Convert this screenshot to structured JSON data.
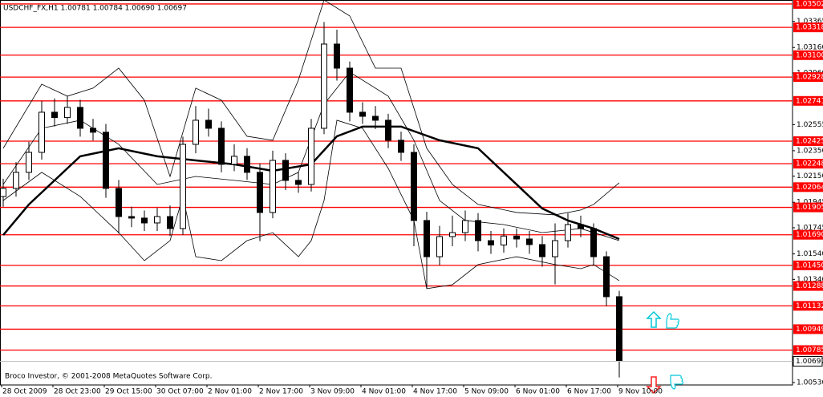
{
  "chart_data": {
    "type": "candlestick",
    "title": "USDCHF_FX,H1  1.00781 1.00784 1.00690 1.00697",
    "footnote": "Broco Investor, © 2001-2008 MetaQuotes Software Corp.",
    "categories": [
      "28 Oct 2009",
      null,
      null,
      null,
      "28 Oct 23:00",
      null,
      null,
      null,
      "29 Oct 15:00",
      null,
      null,
      null,
      "30 Oct 07:00",
      null,
      null,
      null,
      "2 Nov 01:00",
      null,
      null,
      null,
      "2 Nov 17:00",
      null,
      null,
      null,
      "3 Nov 09:00",
      null,
      null,
      null,
      "4 Nov 01:00",
      null,
      null,
      null,
      "4 Nov 17:00",
      null,
      null,
      null,
      "5 Nov 09:00",
      null,
      null,
      null,
      "6 Nov 01:00",
      null,
      null,
      null,
      "6 Nov 17:00",
      null,
      null,
      null,
      "9 Nov 10:00"
    ],
    "open": [
      1.0199,
      1.02054,
      1.0218,
      1.02337,
      1.02652,
      1.0261,
      1.0269,
      1.02526,
      1.02495,
      1.02054,
      1.01833,
      1.01821,
      1.01783,
      1.01833,
      1.01739,
      1.024,
      1.02589,
      1.02526,
      1.02243,
      1.02306,
      1.0218,
      1.01865,
      1.02274,
      1.02117,
      1.02085,
      1.02526,
      1.03187,
      1.02998,
      1.02652,
      1.0262,
      1.02589,
      1.02432,
      1.02337,
      1.01802,
      1.01518,
      1.01676,
      1.01707,
      1.01802,
      1.01644,
      1.0161,
      1.0168,
      1.01657,
      1.01613,
      1.01518,
      1.01644,
      1.0177,
      1.01739,
      1.01518,
      1.01204
    ],
    "high": [
      1.0213,
      1.0226,
      1.0242,
      1.0274,
      1.0276,
      1.0278,
      1.0275,
      1.026,
      1.0256,
      1.0212,
      1.0191,
      1.0188,
      1.019,
      1.0192,
      1.0246,
      1.027,
      1.0268,
      1.0258,
      1.024,
      1.0237,
      1.0225,
      1.0235,
      1.0233,
      1.0218,
      1.026,
      1.0336,
      1.033,
      1.0305,
      1.0273,
      1.027,
      1.0264,
      1.025,
      1.024,
      1.0187,
      1.0176,
      1.0184,
      1.0188,
      1.0186,
      1.0172,
      1.0174,
      1.0174,
      1.0172,
      1.0168,
      1.0178,
      1.0186,
      1.0184,
      1.0178,
      1.0156,
      1.0125
    ],
    "low": [
      1.0191,
      1.0199,
      1.0212,
      1.0228,
      1.0254,
      1.0256,
      1.0246,
      1.0243,
      1.0198,
      1.017,
      1.0175,
      1.0172,
      1.0172,
      1.0168,
      1.0169,
      1.0233,
      1.0246,
      1.0218,
      1.0219,
      1.0212,
      1.0164,
      1.0182,
      1.0204,
      1.0202,
      1.0203,
      1.0248,
      1.029,
      1.0258,
      1.0256,
      1.0252,
      1.0237,
      1.0227,
      1.016,
      1.0127,
      1.0145,
      1.016,
      1.0164,
      1.0156,
      1.0154,
      1.0155,
      1.0159,
      1.0154,
      1.0144,
      1.013,
      1.0159,
      1.0167,
      1.0145,
      1.0113,
      1.0057
    ],
    "close": [
      1.02054,
      1.0218,
      1.02337,
      1.02652,
      1.0261,
      1.0269,
      1.02526,
      1.02495,
      1.02054,
      1.01833,
      1.01821,
      1.01783,
      1.01833,
      1.01739,
      1.024,
      1.02589,
      1.02526,
      1.02243,
      1.02306,
      1.0218,
      1.01865,
      1.02274,
      1.02117,
      1.02085,
      1.02526,
      1.03187,
      1.02998,
      1.02652,
      1.0262,
      1.02589,
      1.02432,
      1.02337,
      1.01802,
      1.01518,
      1.01676,
      1.01707,
      1.01802,
      1.01644,
      1.0161,
      1.0168,
      1.01657,
      1.01613,
      1.01518,
      1.01644,
      1.0177,
      1.01739,
      1.01518,
      1.01204,
      1.00697
    ],
    "overlays": [
      {
        "color": "#000000",
        "width": 2.5,
        "x": [
          0,
          2,
          6,
          9,
          12,
          15,
          18,
          21,
          24,
          26,
          28,
          31,
          34,
          37,
          39,
          42,
          44,
          46,
          48
        ],
        "values": [
          1.01688,
          1.01928,
          1.02306,
          1.02369,
          1.02306,
          1.02274,
          1.02243,
          1.02192,
          1.02243,
          1.02463,
          1.02539,
          1.02539,
          1.02432,
          1.02369,
          1.0218,
          1.01896,
          1.01802,
          1.01739,
          1.01657
        ]
      },
      {
        "color": "#000000",
        "width": 0.8,
        "x": [
          0,
          3,
          5,
          7,
          9,
          11,
          13,
          15,
          17,
          19,
          21,
          23,
          25,
          27,
          29,
          31,
          33,
          35,
          37,
          40,
          43,
          45,
          46,
          48
        ],
        "values": [
          1.02369,
          1.02872,
          1.02778,
          1.02841,
          1.02998,
          1.02746,
          1.02148,
          1.02841,
          1.02746,
          1.02463,
          1.02432,
          1.02904,
          1.03533,
          1.03408,
          1.02998,
          1.02998,
          1.02369,
          1.02085,
          1.01928,
          1.01865,
          1.01846,
          1.01884,
          1.01928,
          1.02098
        ]
      },
      {
        "color": "#000000",
        "width": 0.8,
        "x": [
          0,
          3,
          6,
          9,
          12,
          15,
          18,
          21,
          23,
          25,
          27,
          30,
          32,
          34,
          36,
          39,
          42,
          45,
          48
        ],
        "values": [
          1.02085,
          1.02526,
          1.02589,
          1.024,
          1.02085,
          1.02148,
          1.02117,
          1.02085,
          1.0218,
          1.02715,
          1.02967,
          1.02778,
          1.02432,
          1.01959,
          1.01802,
          1.0177,
          1.01707,
          1.01739,
          1.01644
        ]
      },
      {
        "color": "#000000",
        "width": 0.8,
        "x": [
          0,
          3,
          6,
          9,
          11,
          13,
          14,
          15,
          17,
          19,
          21,
          23,
          24,
          25,
          26,
          28,
          30,
          32,
          33,
          35,
          37,
          40,
          43,
          45,
          46,
          48
        ],
        "values": [
          1.01959,
          1.0218,
          1.01991,
          1.01707,
          1.01487,
          1.01644,
          1.01991,
          1.01518,
          1.01487,
          1.01644,
          1.01707,
          1.01518,
          1.01644,
          1.01959,
          1.02589,
          1.02526,
          1.02211,
          1.01802,
          1.01267,
          1.01298,
          1.01456,
          1.01518,
          1.01456,
          1.01424,
          1.01456,
          1.0133
        ]
      }
    ],
    "levels": [
      1.03502,
      1.03318,
      {
        "value": 1.031,
        "label": "1.03100"
      },
      1.02928,
      1.02741,
      1.02425,
      1.02248,
      1.02064,
      1.01905,
      {
        "value": 1.0169,
        "label": "1.01690"
      },
      {
        "value": 1.0145,
        "label": "1.01450"
      },
      1.01288,
      1.01132,
      1.00949,
      1.00785
    ],
    "level_color": "#ff0000",
    "ylim": [
      1.00511,
      1.03533
    ],
    "yticks": [
      1.03365,
      {
        "value": 1.0316,
        "label": "1.03160"
      },
      {
        "value": 1.0296,
        "label": "1.02960"
      },
      1.02555,
      {
        "value": 1.0235,
        "label": "1.02350"
      },
      {
        "value": 1.0215,
        "label": "1.02150"
      },
      1.01945,
      1.01745,
      {
        "value": 1.0154,
        "label": "1.01540"
      },
      {
        "value": 1.0134,
        "label": "1.01340"
      },
      {
        "value": 1.0053,
        "label": "1.00530"
      }
    ]
  }
}
